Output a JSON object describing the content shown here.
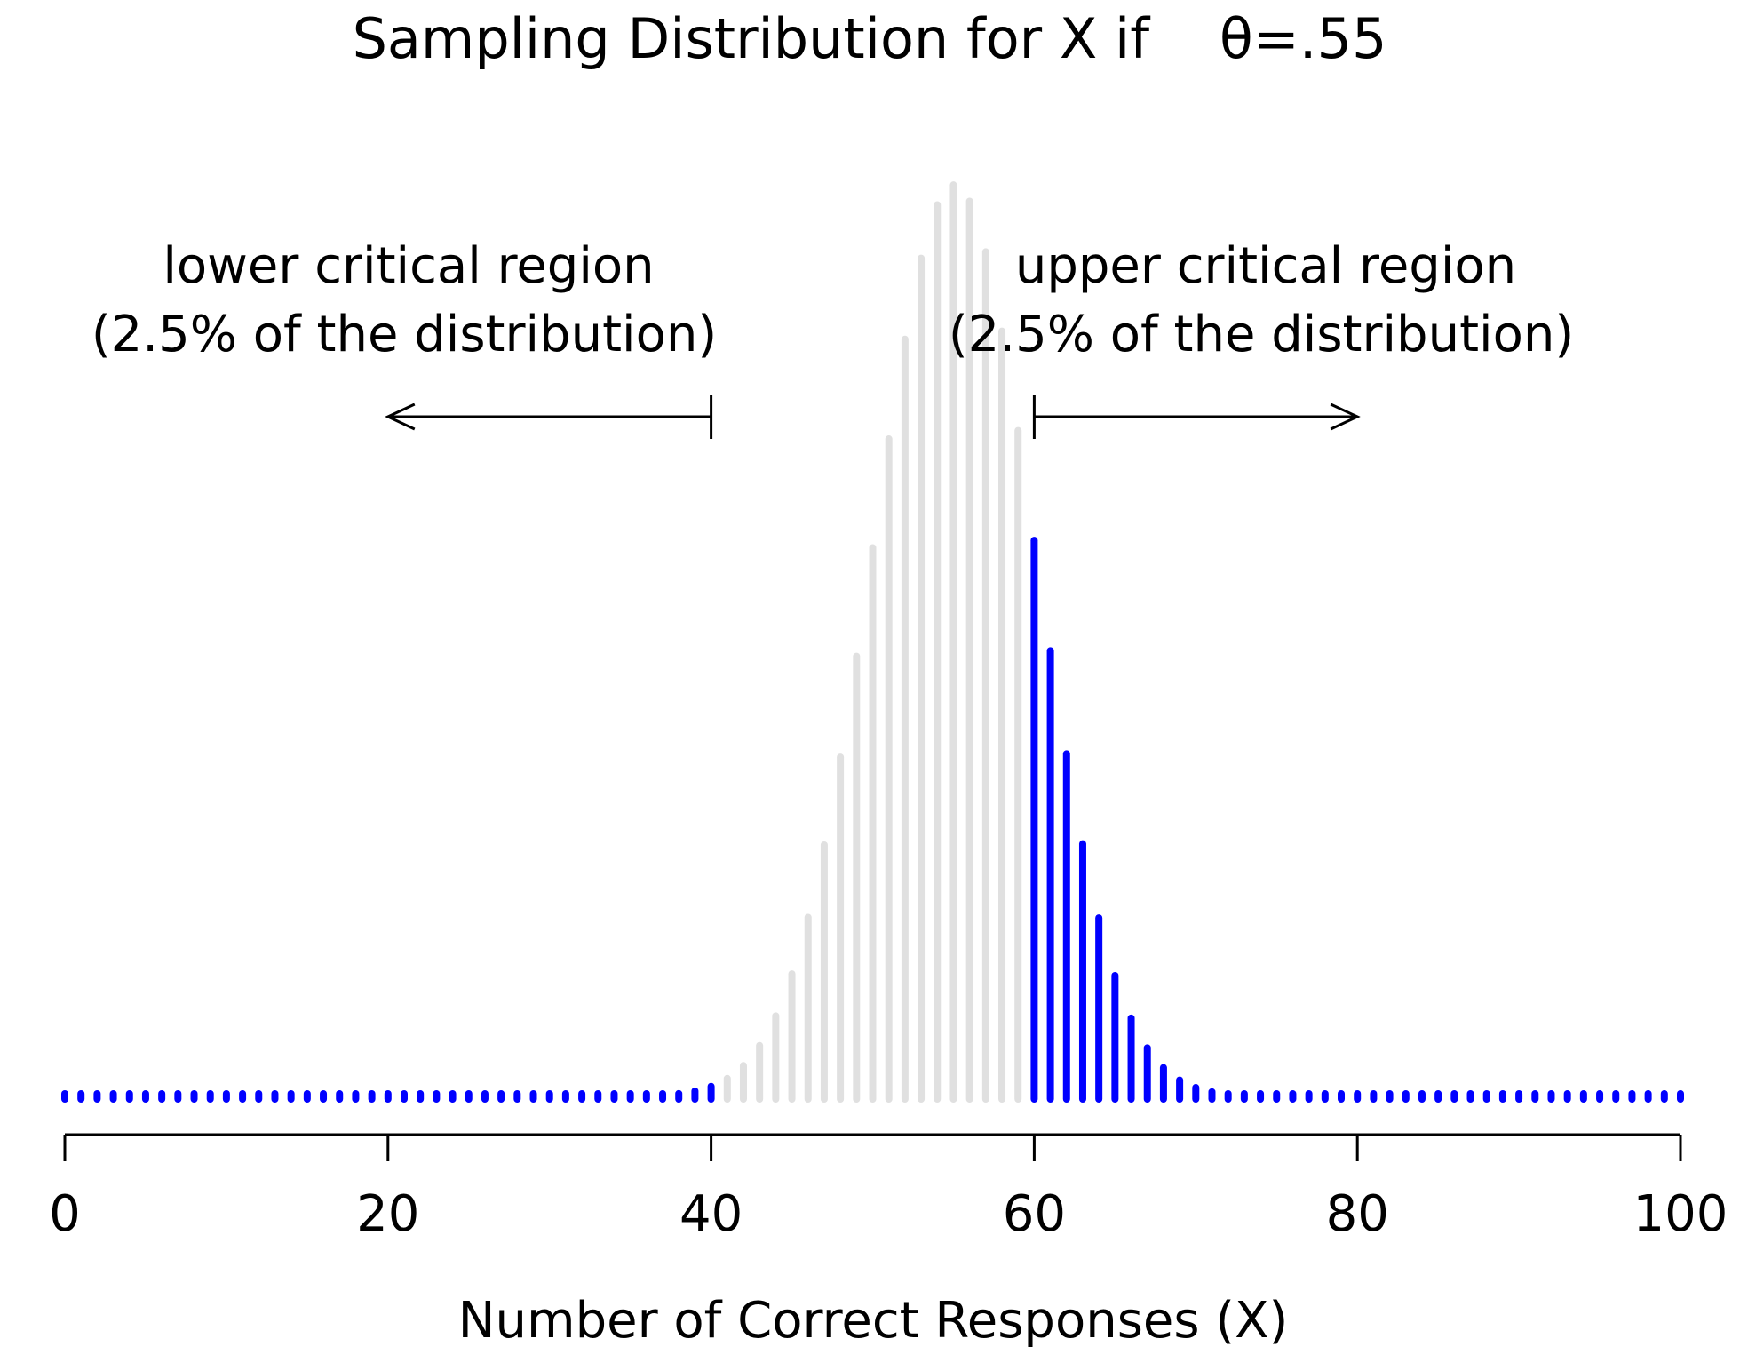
{
  "chart_data": {
    "type": "bar",
    "title": "Sampling Distribution for X if    θ=.55",
    "xlabel": "Number of Correct Responses (X)",
    "ylabel": "",
    "xlim": [
      0,
      100
    ],
    "ylim": [
      0,
      0.08
    ],
    "x_ticks": [
      "0",
      "20",
      "40",
      "60",
      "80",
      "100"
    ],
    "y_axis_shown": false,
    "grid": false,
    "distribution": "binomial",
    "n": 100,
    "theta": 0.55,
    "critical_values": {
      "lower": 40,
      "upper": 60
    },
    "colors": {
      "critical_region": "#0000ff",
      "non_critical": "#e0e0e0",
      "axis": "#000000"
    },
    "annotations": [
      {
        "id": "lower",
        "lines": [
          "lower critical region",
          "(2.5% of the distribution)"
        ],
        "arrow_from": 40,
        "arrow_to": 20
      },
      {
        "id": "upper",
        "lines": [
          "upper critical region",
          "(2.5% of the distribution)"
        ],
        "arrow_from": 60,
        "arrow_to": 80
      }
    ]
  }
}
